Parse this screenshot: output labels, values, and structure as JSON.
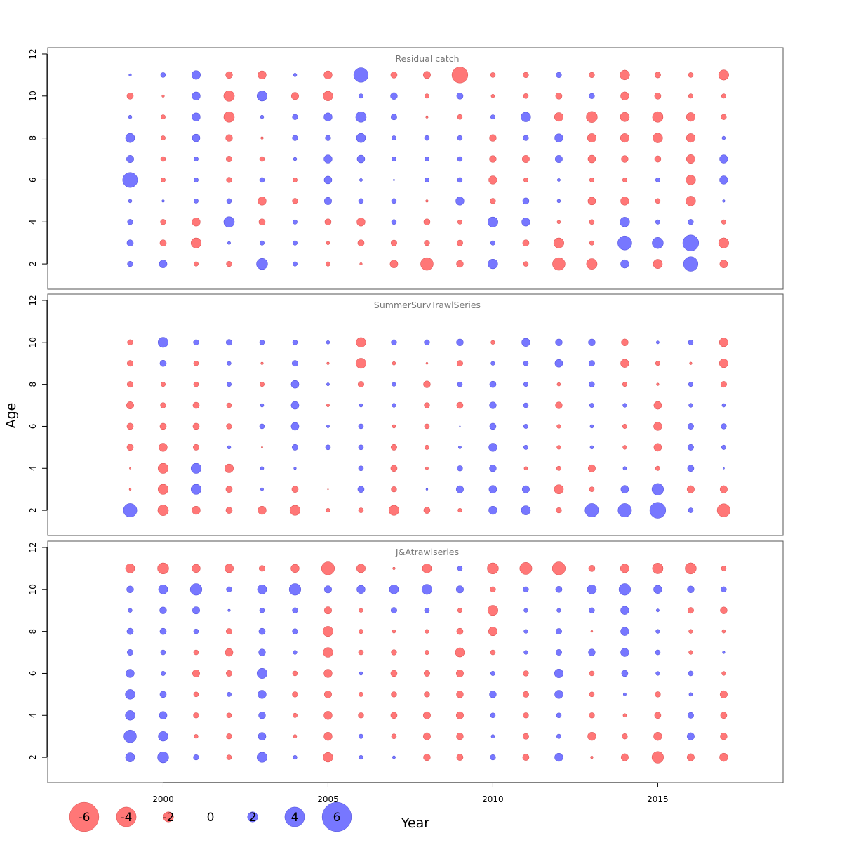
{
  "chart_data": {
    "type": "scatter",
    "subtype": "bubble",
    "shared_xlabel": "Year",
    "shared_ylabel": "Age",
    "xlim": [
      1996.5,
      2018.8
    ],
    "ylim": [
      0.8,
      12.3
    ],
    "x_ticks": [
      2000,
      2005,
      2010,
      2015
    ],
    "y_ticks": [
      2,
      4,
      6,
      8,
      10,
      12
    ],
    "colors": {
      "positive": "#7777ff",
      "negative": "#ff7777",
      "positive_border": "#3333cc",
      "negative_border": "#cc3333"
    },
    "legend": {
      "values": [
        -6,
        -4,
        -2,
        0,
        2,
        4,
        6
      ],
      "labels": [
        "-6",
        "-4",
        "-2",
        "0",
        "2",
        "4",
        "6"
      ],
      "placement": "bottom-left"
    },
    "years": [
      1999,
      2000,
      2001,
      2002,
      2003,
      2004,
      2005,
      2006,
      2007,
      2008,
      2009,
      2010,
      2011,
      2012,
      2013,
      2014,
      2015,
      2016,
      2017
    ],
    "panels": [
      {
        "title": "Residual catch",
        "ages": [
          2,
          3,
          4,
          5,
          6,
          7,
          8,
          9,
          10,
          11
        ],
        "residuals": [
          [
            1.0,
            1.5,
            -0.8,
            -1.0,
            2.2,
            0.8,
            -0.8,
            -0.4,
            -1.5,
            -2.5,
            -1.3,
            1.9,
            -0.9,
            -2.5,
            -2.1,
            1.6,
            -1.8,
            2.9,
            -1.5
          ],
          [
            1.2,
            -1.2,
            -2.0,
            0.5,
            0.8,
            0.8,
            -0.6,
            -1.2,
            -1.1,
            -1.0,
            -1.1,
            0.8,
            -1.2,
            -2.0,
            -0.8,
            2.8,
            2.2,
            3.2,
            -2.0
          ],
          [
            1.0,
            -1.0,
            -1.6,
            2.1,
            -1.2,
            0.8,
            -1.2,
            -1.6,
            0.9,
            -1.2,
            -0.8,
            2.0,
            1.6,
            -0.6,
            -0.9,
            1.9,
            0.8,
            1.0,
            -0.8
          ],
          [
            0.6,
            0.4,
            0.8,
            0.9,
            -1.6,
            -1.0,
            1.4,
            0.9,
            0.9,
            -0.4,
            1.6,
            -1.0,
            1.2,
            0.6,
            -1.5,
            -1.6,
            -0.9,
            -1.9,
            0.4
          ],
          [
            3.0,
            -0.8,
            0.8,
            -1.0,
            0.9,
            -0.8,
            1.5,
            0.5,
            0.2,
            0.8,
            0.9,
            -1.6,
            -0.8,
            0.5,
            -0.8,
            -0.8,
            0.8,
            -1.9,
            1.6
          ],
          [
            1.4,
            -0.9,
            0.8,
            -1.1,
            -0.9,
            0.6,
            1.6,
            1.5,
            0.8,
            0.8,
            0.9,
            -1.3,
            -1.4,
            1.4,
            -1.5,
            -1.3,
            -1.2,
            -1.7,
            1.6
          ],
          [
            1.8,
            -0.8,
            1.5,
            -1.3,
            -0.4,
            1.0,
            1.0,
            1.8,
            0.8,
            0.9,
            0.9,
            -1.3,
            1.0,
            1.6,
            -1.7,
            -1.7,
            -1.9,
            -1.7,
            0.6
          ],
          [
            0.6,
            -0.8,
            1.6,
            -2.1,
            0.6,
            1.0,
            1.6,
            2.1,
            1.1,
            -0.4,
            -0.9,
            0.8,
            1.9,
            -1.7,
            -2.2,
            -1.8,
            -2.1,
            -1.7,
            -1.0
          ],
          [
            -1.2,
            -0.4,
            1.6,
            -2.1,
            2.0,
            -1.4,
            -1.9,
            0.8,
            1.3,
            -0.8,
            1.2,
            -0.6,
            -0.9,
            -1.2,
            1.0,
            -1.6,
            -1.2,
            -0.8,
            -0.8
          ],
          [
            0.4,
            0.9,
            1.7,
            -1.3,
            -1.6,
            0.6,
            -1.6,
            2.9,
            -1.2,
            -1.4,
            -3.2,
            -0.9,
            -1.0,
            1.0,
            -1.0,
            -1.9,
            -1.1,
            -0.9,
            -2.0
          ]
        ]
      },
      {
        "title": "SummerSurvTrawlSeries",
        "ages": [
          2,
          3,
          4,
          5,
          6,
          7,
          8,
          9,
          10
        ],
        "residuals": [
          [
            2.7,
            -2.1,
            -1.6,
            -1.2,
            -1.6,
            -2.0,
            -0.7,
            -0.9,
            -2.0,
            -1.2,
            -0.7,
            1.6,
            1.8,
            -1.0,
            2.7,
            2.7,
            3.2,
            0.9,
            -2.6
          ],
          [
            -0.3,
            -2.0,
            2.0,
            -1.2,
            0.5,
            -1.2,
            -0.1,
            1.2,
            -1.0,
            0.3,
            1.4,
            1.5,
            1.4,
            -1.8,
            -0.9,
            1.5,
            2.3,
            -1.4,
            -1.4
          ],
          [
            -0.2,
            -2.0,
            2.0,
            -1.7,
            0.6,
            0.4,
            0,
            0.9,
            -1.2,
            -0.5,
            1.0,
            1.3,
            -0.6,
            -0.8,
            -1.4,
            0.6,
            -0.8,
            1.2,
            0.2
          ],
          [
            -1.2,
            -1.6,
            -1.1,
            0.6,
            -0.2,
            1.1,
            0.9,
            0.9,
            -1.1,
            -0.8,
            0.5,
            1.6,
            0.8,
            -0.7,
            0.6,
            -0.7,
            -1.5,
            1.1,
            0.8
          ],
          [
            -1.2,
            -1.2,
            -1.2,
            -1.0,
            0.9,
            1.5,
            0.5,
            0.9,
            -0.6,
            -0.9,
            0.1,
            1.2,
            0.8,
            -0.7,
            0.6,
            -0.8,
            -1.6,
            1.1,
            1.0
          ],
          [
            -1.4,
            -1.0,
            -1.2,
            -0.9,
            0.6,
            1.5,
            -0.5,
            0.6,
            0.7,
            -1.0,
            -1.2,
            1.3,
            0.9,
            -1.3,
            0.8,
            0.7,
            -1.5,
            0.7,
            0.6
          ],
          [
            -1.1,
            -0.8,
            -0.9,
            0.8,
            -0.8,
            1.5,
            0.5,
            -1.1,
            0.7,
            -1.3,
            0.9,
            1.2,
            0.8,
            -0.6,
            1.0,
            -0.8,
            -0.4,
            0.8,
            -1.1
          ],
          [
            -1.1,
            1.2,
            -0.9,
            0.7,
            -0.4,
            1.1,
            -0.4,
            -2.0,
            -0.6,
            -0.3,
            -1.1,
            0.7,
            0.9,
            1.5,
            1.1,
            -1.6,
            -0.8,
            -0.4,
            -1.7
          ],
          [
            -1.0,
            2.0,
            1.0,
            1.1,
            0.9,
            0.9,
            0.6,
            -1.9,
            1.0,
            1.0,
            1.3,
            -0.7,
            1.6,
            1.3,
            1.3,
            -1.3,
            0.5,
            0.9,
            -1.7
          ]
        ]
      },
      {
        "title": "J&Atrawlseries",
        "ages": [
          2,
          3,
          4,
          5,
          6,
          7,
          8,
          9,
          10,
          11
        ],
        "residuals": [
          [
            1.8,
            2.2,
            1.0,
            -0.9,
            2.0,
            0.7,
            -1.9,
            0.7,
            0.5,
            -1.3,
            -1.2,
            1.0,
            -1.2,
            1.6,
            -0.4,
            -1.4,
            -2.3,
            -1.4,
            -1.6
          ],
          [
            2.5,
            1.9,
            -0.7,
            -1.0,
            1.5,
            -0.6,
            -1.6,
            0.8,
            -0.9,
            -1.4,
            -1.3,
            0.6,
            -1.1,
            0.8,
            -1.6,
            -1.0,
            -1.6,
            1.4,
            -1.3
          ],
          [
            1.9,
            1.5,
            -1.0,
            -0.9,
            1.3,
            -0.8,
            -1.6,
            -1.0,
            -1.2,
            -1.4,
            -1.4,
            0.9,
            -1.0,
            0.9,
            -1.0,
            -0.6,
            -1.2,
            1.1,
            -1.2
          ],
          [
            1.9,
            1.2,
            -0.9,
            0.8,
            1.6,
            -1.0,
            -1.4,
            -0.8,
            -1.0,
            -1.0,
            -1.3,
            1.3,
            -1.1,
            1.6,
            -0.9,
            0.5,
            -1.0,
            0.6,
            -1.4
          ],
          [
            1.6,
            0.8,
            -1.4,
            -1.1,
            2.0,
            -0.9,
            -1.6,
            0.6,
            -1.2,
            -1.1,
            -1.4,
            0.8,
            -1.0,
            1.7,
            -0.9,
            1.2,
            0.7,
            0.9,
            -0.7
          ],
          [
            1.1,
            0.9,
            -0.9,
            -1.5,
            1.3,
            0.7,
            -1.9,
            -0.9,
            -1.0,
            -0.8,
            -1.8,
            -0.9,
            0.7,
            1.1,
            1.3,
            1.6,
            0.9,
            -0.7,
            0.4
          ],
          [
            1.2,
            1.2,
            0.9,
            -1.1,
            1.2,
            1.0,
            -2.0,
            -0.8,
            -0.6,
            -0.7,
            -1.2,
            -1.7,
            0.7,
            1.1,
            -0.3,
            1.6,
            0.7,
            -0.7,
            -0.6
          ],
          [
            0.7,
            1.3,
            1.4,
            0.4,
            0.9,
            1.0,
            -1.4,
            -0.7,
            1.1,
            0.9,
            -0.8,
            -2.0,
            0.7,
            0.7,
            1.0,
            1.6,
            0.5,
            -1.1,
            -1.3
          ],
          [
            1.3,
            1.8,
            2.3,
            1.0,
            1.8,
            2.3,
            1.4,
            1.6,
            1.8,
            2.0,
            1.4,
            -1.0,
            1.0,
            1.2,
            1.8,
            2.3,
            1.6,
            1.3,
            1.0
          ],
          [
            -1.8,
            -2.2,
            -1.6,
            -1.7,
            -1.1,
            -1.6,
            -2.6,
            -1.7,
            -0.4,
            -1.8,
            0.9,
            -2.2,
            -2.4,
            -2.6,
            -1.2,
            -1.7,
            -2.1,
            -2.2,
            -0.9
          ]
        ]
      }
    ]
  }
}
